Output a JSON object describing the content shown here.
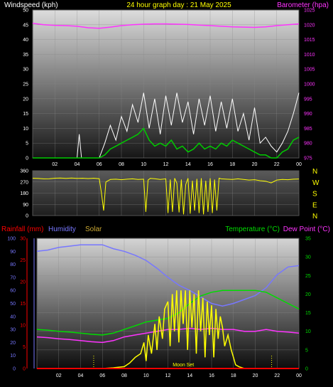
{
  "colors": {
    "background": "#000000",
    "wind": "#ffffff",
    "gust_avg": "#00cc00",
    "barometer": "#ff33ff",
    "direction": "#ffff00",
    "rainfall": "#ff0000",
    "humidity": "#7777ff",
    "solar": "#ffff00",
    "temperature": "#00dd00",
    "dew_point": "#ff33ff",
    "moon_set": "#ffff00",
    "top_title": "#ffff00"
  },
  "chart_data": [
    {
      "type": "line",
      "panel": "wind-barometer",
      "title": "24 hour graph day : 21 May 2025",
      "ylabel_left": "Windspeed (kph)",
      "ylabel_right": "Barometer (hpa)",
      "x_ticks": [
        "02",
        "04",
        "06",
        "08",
        "10",
        "12",
        "14",
        "16",
        "18",
        "20",
        "22",
        "00"
      ],
      "x_range": [
        0,
        24
      ],
      "y_left_ticks": [
        "0",
        "5",
        "10",
        "15",
        "20",
        "25",
        "30",
        "35",
        "40",
        "45",
        "50"
      ],
      "y_left_range": [
        0,
        50
      ],
      "y_right_ticks": [
        "975",
        "980",
        "985",
        "990",
        "995",
        "1000",
        "1005",
        "1010",
        "1015",
        "1020",
        "1025"
      ],
      "y_right_range": [
        975,
        1025
      ],
      "series": [
        {
          "key": "barometer",
          "axis": "right",
          "x": [
            0,
            1,
            2,
            3,
            4,
            5,
            6,
            7,
            8,
            9,
            10,
            11,
            12,
            13,
            14,
            15,
            16,
            17,
            18,
            19,
            20,
            21,
            22,
            23,
            24
          ],
          "values": [
            1020.5,
            1020.0,
            1019.8,
            1019.7,
            1019.5,
            1019.0,
            1018.8,
            1019.2,
            1019.7,
            1020.0,
            1020.2,
            1020.3,
            1020.3,
            1020.2,
            1020.1,
            1019.9,
            1019.7,
            1019.5,
            1019.3,
            1019.2,
            1019.1,
            1019.3,
            1019.7,
            1020.0,
            1020.3
          ]
        },
        {
          "key": "wind",
          "axis": "left",
          "x": [
            0,
            1,
            2,
            3,
            4,
            4.2,
            4.4,
            5,
            6,
            6.5,
            7,
            7.5,
            8,
            8.5,
            9,
            9.5,
            10,
            10.5,
            11,
            11.5,
            12,
            12.5,
            13,
            13.5,
            14,
            14.5,
            15,
            15.5,
            16,
            16.5,
            17,
            17.5,
            18,
            18.5,
            19,
            19.5,
            20,
            20.5,
            21,
            21.5,
            22,
            22.5,
            23,
            23.5,
            24
          ],
          "values": [
            0,
            0,
            0,
            0,
            0,
            8,
            0,
            0,
            0,
            5,
            11,
            6,
            14,
            9,
            18,
            12,
            22,
            10,
            20,
            8,
            21,
            11,
            22,
            12,
            19,
            8,
            20,
            11,
            21,
            9,
            19,
            10,
            20,
            9,
            15,
            6,
            17,
            5,
            7,
            4,
            2,
            5,
            9,
            15,
            22
          ]
        },
        {
          "key": "gust_avg",
          "axis": "left",
          "x": [
            0,
            1,
            2,
            3,
            4,
            5,
            6,
            6.5,
            7,
            7.5,
            8,
            8.5,
            9,
            9.5,
            10,
            10.5,
            11,
            11.5,
            12,
            12.5,
            13,
            13.5,
            14,
            14.5,
            15,
            15.5,
            16,
            16.5,
            17,
            17.5,
            18,
            18.5,
            19,
            19.5,
            20,
            20.5,
            21,
            21.5,
            22,
            22.5,
            23,
            23.5,
            24
          ],
          "values": [
            0,
            0,
            0,
            0,
            0,
            0,
            0,
            1,
            3,
            4,
            5,
            6,
            7,
            8,
            10,
            6,
            4,
            5,
            4,
            6,
            3,
            4,
            2,
            3,
            5,
            3,
            4,
            3,
            5,
            4,
            6,
            5,
            4,
            3,
            2,
            1,
            1,
            0,
            0,
            2,
            3,
            6,
            7
          ]
        }
      ]
    },
    {
      "type": "line",
      "panel": "wind-direction",
      "x_range": [
        0,
        24
      ],
      "y_ticks": [
        "0",
        "90",
        "180",
        "270",
        "360"
      ],
      "y_range": [
        0,
        360
      ],
      "compass_labels": [
        "N",
        "W",
        "S",
        "E",
        "N"
      ],
      "series": [
        {
          "key": "direction",
          "x": [
            0,
            0.5,
            1,
            1.5,
            2,
            2.5,
            3,
            3.5,
            4,
            4.5,
            5,
            5.5,
            6,
            6.2,
            6.4,
            6.6,
            7,
            7.5,
            8,
            8.5,
            9,
            9.5,
            10,
            10.2,
            10.4,
            10.6,
            11,
            11.5,
            12,
            12.2,
            12.4,
            12.6,
            12.8,
            13,
            13.2,
            13.4,
            13.6,
            13.8,
            14,
            14.2,
            14.4,
            14.6,
            14.8,
            15,
            15.2,
            15.4,
            15.6,
            15.8,
            16,
            16.2,
            16.4,
            16.6,
            16.8,
            17,
            17.5,
            18,
            18.5,
            19,
            19.5,
            20,
            20.5,
            21,
            21.5,
            22,
            22.5,
            23,
            23.5,
            24
          ],
          "values": [
            300,
            298,
            295,
            296,
            300,
            302,
            299,
            301,
            298,
            300,
            297,
            300,
            296,
            180,
            40,
            270,
            290,
            292,
            288,
            292,
            295,
            290,
            292,
            30,
            285,
            298,
            296,
            290,
            295,
            20,
            290,
            30,
            300,
            260,
            25,
            290,
            10,
            250,
            300,
            15,
            280,
            40,
            295,
            20,
            300,
            10,
            280,
            30,
            300,
            20,
            290,
            40,
            300,
            295,
            292,
            290,
            295,
            290,
            285,
            288,
            280,
            276,
            262,
            285,
            290,
            288,
            292,
            294
          ]
        }
      ]
    },
    {
      "type": "line",
      "panel": "temperature-humidity-solar",
      "legend_left": [
        "Rainfall (mm)",
        "Humidity",
        "Solar"
      ],
      "legend_right": [
        "Temperature (°C)",
        "Dew Point (°C)"
      ],
      "x_ticks": [
        "02",
        "04",
        "06",
        "08",
        "10",
        "12",
        "14",
        "16",
        "18",
        "20",
        "22",
        "00"
      ],
      "x_range": [
        0,
        24
      ],
      "rain_ticks": [
        "0",
        "5",
        "10",
        "15",
        "20",
        "25",
        "30"
      ],
      "rain_range": [
        0,
        30
      ],
      "humidity_ticks": [
        "0",
        "10",
        "20",
        "30",
        "40",
        "50",
        "60",
        "70",
        "80",
        "90",
        "100"
      ],
      "humidity_range": [
        0,
        100
      ],
      "temp_ticks": [
        "0",
        "5",
        "10",
        "15",
        "20",
        "25",
        "30",
        "35"
      ],
      "temp_range": [
        0,
        35
      ],
      "annotation": "Moon Set",
      "annotation_x": 12.5,
      "markers_x": [
        5.2,
        21.5
      ],
      "series": [
        {
          "key": "humidity",
          "axis": "humidity",
          "x": [
            0,
            1,
            2,
            3,
            4,
            5,
            6,
            7,
            8,
            9,
            10,
            11,
            12,
            13,
            14,
            15,
            16,
            17,
            18,
            19,
            20,
            21,
            22,
            23,
            24
          ],
          "values": [
            90,
            91,
            93,
            94,
            95,
            95,
            95,
            92,
            90,
            87,
            83,
            77,
            70,
            64,
            60,
            55,
            50,
            48,
            50,
            53,
            56,
            62,
            72,
            78,
            79
          ]
        },
        {
          "key": "temperature",
          "axis": "temp",
          "x": [
            0,
            1,
            2,
            3,
            4,
            5,
            6,
            7,
            8,
            9,
            10,
            11,
            12,
            13,
            14,
            15,
            16,
            17,
            18,
            19,
            20,
            21,
            22,
            23,
            24
          ],
          "values": [
            10.5,
            10.3,
            10.0,
            9.8,
            9.5,
            9.2,
            9.0,
            9.5,
            10.5,
            11.5,
            12.5,
            13.0,
            13.5,
            15.0,
            17.5,
            19.5,
            20.5,
            21.0,
            21.0,
            21.0,
            21.0,
            20.5,
            19.0,
            17.5,
            16.0
          ]
        },
        {
          "key": "dew_point",
          "axis": "temp",
          "x": [
            0,
            1,
            2,
            3,
            4,
            5,
            6,
            7,
            8,
            9,
            10,
            11,
            12,
            13,
            14,
            15,
            16,
            17,
            18,
            19,
            20,
            21,
            22,
            23,
            24
          ],
          "values": [
            8.5,
            8.3,
            8.0,
            7.8,
            7.5,
            7.2,
            7.0,
            7.5,
            8.5,
            9.0,
            9.5,
            10.0,
            10.5,
            10.5,
            10.8,
            10.5,
            10.8,
            10.5,
            10.5,
            10.0,
            10.0,
            10.5,
            10.0,
            9.8,
            9.5
          ]
        },
        {
          "key": "solar",
          "axis": "temp",
          "x": [
            0,
            6,
            7,
            8,
            8.5,
            9,
            9.5,
            9.8,
            10,
            10.2,
            10.5,
            10.8,
            11,
            11.2,
            11.5,
            11.7,
            12,
            12.2,
            12.4,
            12.6,
            12.8,
            13,
            13.2,
            13.4,
            13.6,
            13.8,
            14,
            14.2,
            14.4,
            14.6,
            14.8,
            15,
            15.2,
            15.4,
            15.6,
            15.8,
            16,
            16.2,
            16.4,
            16.6,
            16.8,
            17,
            17.2,
            17.5,
            17.8,
            18,
            18.2,
            18.5,
            19,
            24
          ],
          "values": [
            0,
            0,
            0.2,
            0.5,
            1.5,
            3,
            4,
            7,
            2,
            9,
            4,
            12,
            5,
            14,
            8,
            16,
            18,
            6,
            20,
            10,
            21,
            7,
            21,
            12,
            21,
            5,
            21,
            11,
            20,
            4,
            21,
            10,
            19,
            3,
            18,
            9,
            17,
            3,
            16,
            8,
            14,
            11,
            6,
            9,
            5,
            3,
            1,
            0.5,
            0,
            0
          ]
        },
        {
          "key": "rainfall",
          "axis": "rain",
          "x": [
            0,
            24
          ],
          "values": [
            0,
            0
          ]
        }
      ]
    }
  ]
}
